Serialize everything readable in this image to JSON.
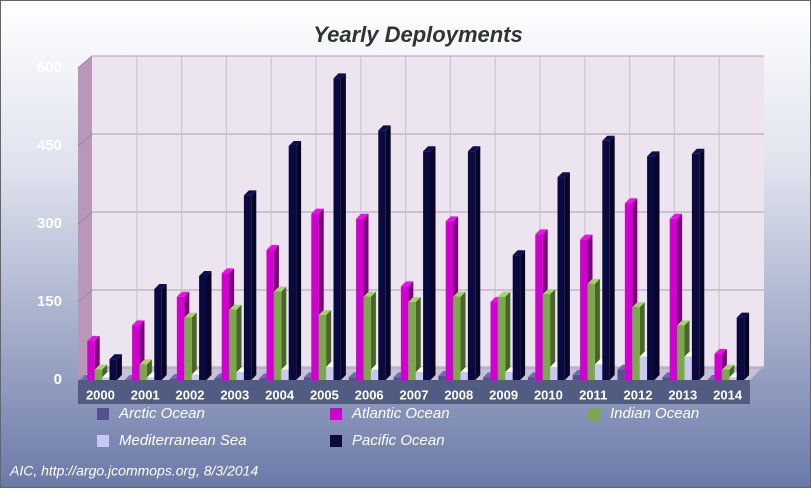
{
  "chart_data": {
    "type": "bar3d",
    "title": "Yearly Deployments",
    "footer": "AIC, http://argo.jcommops.org, 8/3/2014",
    "categories": [
      "2000",
      "2001",
      "2002",
      "2003",
      "2004",
      "2005",
      "2006",
      "2007",
      "2008",
      "2009",
      "2010",
      "2011",
      "2012",
      "2013",
      "2014"
    ],
    "series": [
      {
        "name": "Arctic Ocean",
        "color": "#55508f",
        "values": [
          0,
          0,
          2,
          3,
          3,
          5,
          5,
          5,
          8,
          5,
          5,
          10,
          20,
          5,
          0
        ]
      },
      {
        "name": "Atlantic Ocean",
        "color": "#d000d0",
        "values": [
          75,
          105,
          160,
          205,
          250,
          320,
          310,
          180,
          305,
          150,
          280,
          270,
          340,
          310,
          50
        ]
      },
      {
        "name": "Indian Ocean",
        "color": "#7aa84a",
        "values": [
          20,
          30,
          120,
          135,
          170,
          125,
          160,
          150,
          160,
          160,
          165,
          185,
          140,
          105,
          20
        ]
      },
      {
        "name": "Mediterranean Sea",
        "color": "#c8c8f4",
        "values": [
          5,
          5,
          10,
          15,
          20,
          25,
          20,
          15,
          15,
          15,
          25,
          30,
          45,
          45,
          5
        ]
      },
      {
        "name": "Pacific Ocean",
        "color": "#0a0a40",
        "values": [
          40,
          175,
          200,
          355,
          450,
          580,
          480,
          440,
          440,
          240,
          390,
          460,
          430,
          435,
          120
        ]
      }
    ],
    "ylim": [
      0,
      600
    ],
    "yticks": [
      0,
      150,
      300,
      450,
      600
    ],
    "grid": true
  }
}
